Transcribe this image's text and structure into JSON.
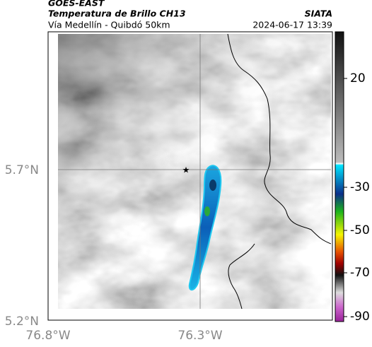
{
  "header": {
    "satellite": "GOES-EAST",
    "product": "Temperatura de Brillo CH13",
    "agency": "SIATA",
    "location": "Vía Medellín - Quibdó 50km",
    "datetime": "2024-06-17 13:39"
  },
  "map": {
    "lat_labels": [
      "5.7°N",
      "5.2°N"
    ],
    "lon_labels": [
      "76.8°W",
      "76.3°W"
    ]
  },
  "colorbar": {
    "ticks": [
      20,
      -30,
      -50,
      -70,
      -90
    ]
  }
}
